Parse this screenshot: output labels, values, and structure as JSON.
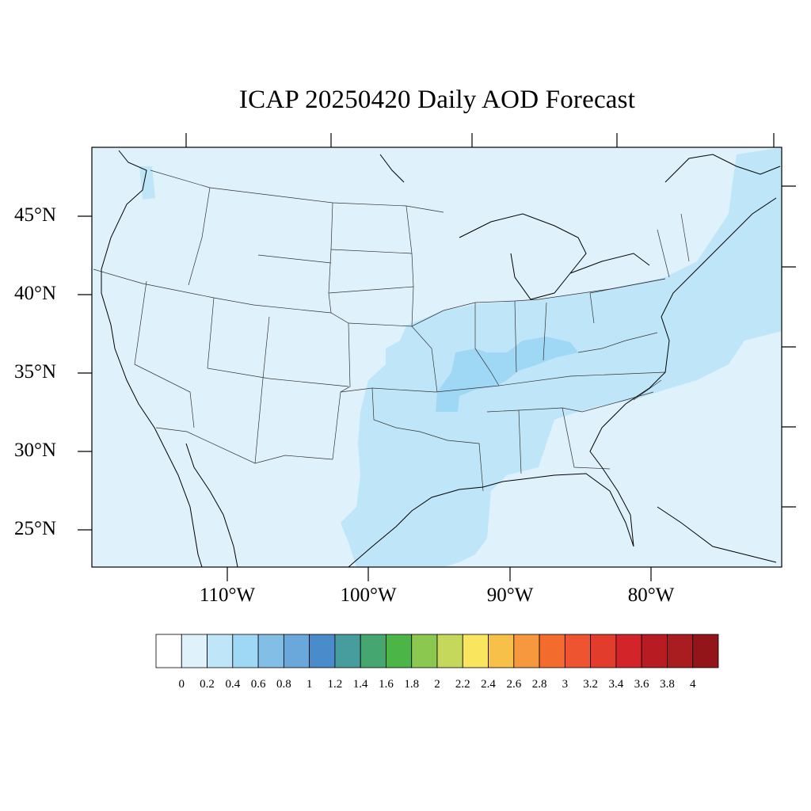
{
  "title": "ICAP 20250420 Daily AOD Forecast",
  "lat_labels": [
    "45°N",
    "40°N",
    "35°N",
    "30°N",
    "25°N"
  ],
  "lon_labels": [
    "110°W",
    "100°W",
    "90°W",
    "80°W"
  ],
  "colorbar": {
    "labels": [
      "0",
      "0.2",
      "0.4",
      "0.6",
      "0.8",
      "1",
      "1.2",
      "1.4",
      "1.6",
      "1.8",
      "2",
      "2.2",
      "2.4",
      "2.6",
      "2.8",
      "3",
      "3.2",
      "3.4",
      "3.6",
      "3.8",
      "4"
    ],
    "colors": [
      "#ffffff",
      "#dff2fb",
      "#bfe6f8",
      "#9fd8f4",
      "#82bee6",
      "#6aa8dc",
      "#4a8ccb",
      "#479c9e",
      "#45a66f",
      "#4bb548",
      "#8bc850",
      "#c6d85c",
      "#f9e65e",
      "#f7c049",
      "#f7983f",
      "#f46b2e",
      "#ef5430",
      "#e23d2c",
      "#d3242a",
      "#b81c22",
      "#a91c20",
      "#941519"
    ]
  },
  "map": {
    "background_color": "#dff2fb",
    "region_04_color": "#bfe6f8",
    "region_06_color": "#9fd8f4"
  }
}
